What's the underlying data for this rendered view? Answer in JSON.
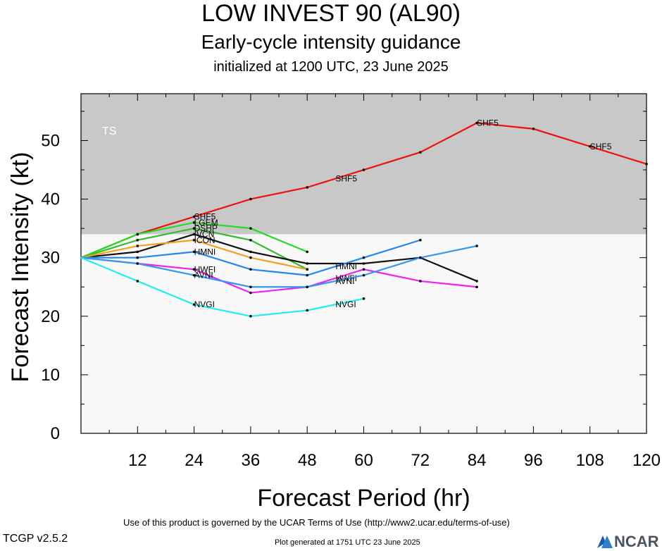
{
  "header": {
    "title": "LOW INVEST 90 (AL90)",
    "subtitle": "Early-cycle intensity guidance",
    "init": "initialized at 1200 UTC, 23 June 2025"
  },
  "footer": {
    "terms": "Use of this product is governed by the UCAR Terms of Use (http://www2.ucar.edu/terms-of-use)",
    "version": "TCGP v2.5.2",
    "generated": "Plot generated at 1751 UTC   23 June 2025",
    "logo_text": "NCAR"
  },
  "chart_data": {
    "type": "line",
    "xlabel": "Forecast Period (hr)",
    "ylabel": "Forecast Intensity (kt)",
    "xlim": [
      0,
      120
    ],
    "ylim": [
      0,
      58
    ],
    "xticks": [
      12,
      24,
      36,
      48,
      60,
      72,
      84,
      96,
      108,
      120
    ],
    "yticks": [
      0,
      10,
      20,
      30,
      40,
      50
    ],
    "bands": [
      {
        "label": "TS",
        "from": 34,
        "to": 58,
        "color": "#c8c8c8"
      },
      {
        "label": "",
        "from": 0,
        "to": 34,
        "color": "#f8f8f8"
      }
    ],
    "series": [
      {
        "name": "SHF5",
        "color": "#ee1111",
        "x": [
          0,
          12,
          24,
          36,
          48,
          60,
          72,
          84,
          96,
          108,
          120
        ],
        "y": [
          30,
          34,
          37,
          40,
          42,
          45,
          48,
          53,
          52,
          49,
          46
        ],
        "labels": [
          24,
          54,
          84,
          108
        ]
      },
      {
        "name": "LGEM",
        "color": "#22dd22",
        "x": [
          0,
          12,
          24,
          36,
          48
        ],
        "y": [
          30,
          34,
          36,
          35,
          31
        ],
        "labels": [
          24
        ]
      },
      {
        "name": "DSHP",
        "color": "#33bb33",
        "x": [
          0,
          12,
          24,
          36,
          48
        ],
        "y": [
          30,
          33,
          35,
          33,
          28
        ],
        "labels": [
          24
        ]
      },
      {
        "name": "IVCN",
        "color": "#111111",
        "x": [
          0,
          12,
          24,
          36,
          48,
          60,
          72,
          84
        ],
        "y": [
          30,
          31,
          34,
          31,
          29,
          29,
          30,
          26
        ],
        "labels": [
          24
        ]
      },
      {
        "name": "ICON",
        "color": "#f5a020",
        "x": [
          0,
          12,
          24,
          36,
          48
        ],
        "y": [
          30,
          32,
          33,
          30,
          28
        ],
        "labels": [
          24
        ]
      },
      {
        "name": "HMNI",
        "color": "#2288ee",
        "x": [
          0,
          12,
          24,
          36,
          48,
          60,
          72
        ],
        "y": [
          30,
          30,
          31,
          28,
          27,
          30,
          33
        ],
        "labels": [
          24,
          54
        ]
      },
      {
        "name": "HWFI",
        "color": "#ee22ee",
        "x": [
          0,
          12,
          24,
          36,
          48,
          60,
          72,
          84
        ],
        "y": [
          30,
          29,
          28,
          24,
          25,
          28,
          26,
          25
        ],
        "labels": [
          24,
          54
        ]
      },
      {
        "name": "AVNI",
        "color": "#3399ee",
        "x": [
          0,
          12,
          24,
          36,
          48,
          60,
          72,
          84
        ],
        "y": [
          30,
          29,
          27,
          25,
          25,
          27,
          30,
          32
        ],
        "labels": [
          24,
          54
        ]
      },
      {
        "name": "NVGI",
        "color": "#22eeee",
        "x": [
          0,
          12,
          24,
          36,
          48,
          60
        ],
        "y": [
          30,
          26,
          22,
          20,
          21,
          23
        ],
        "labels": [
          24,
          54
        ]
      }
    ]
  }
}
